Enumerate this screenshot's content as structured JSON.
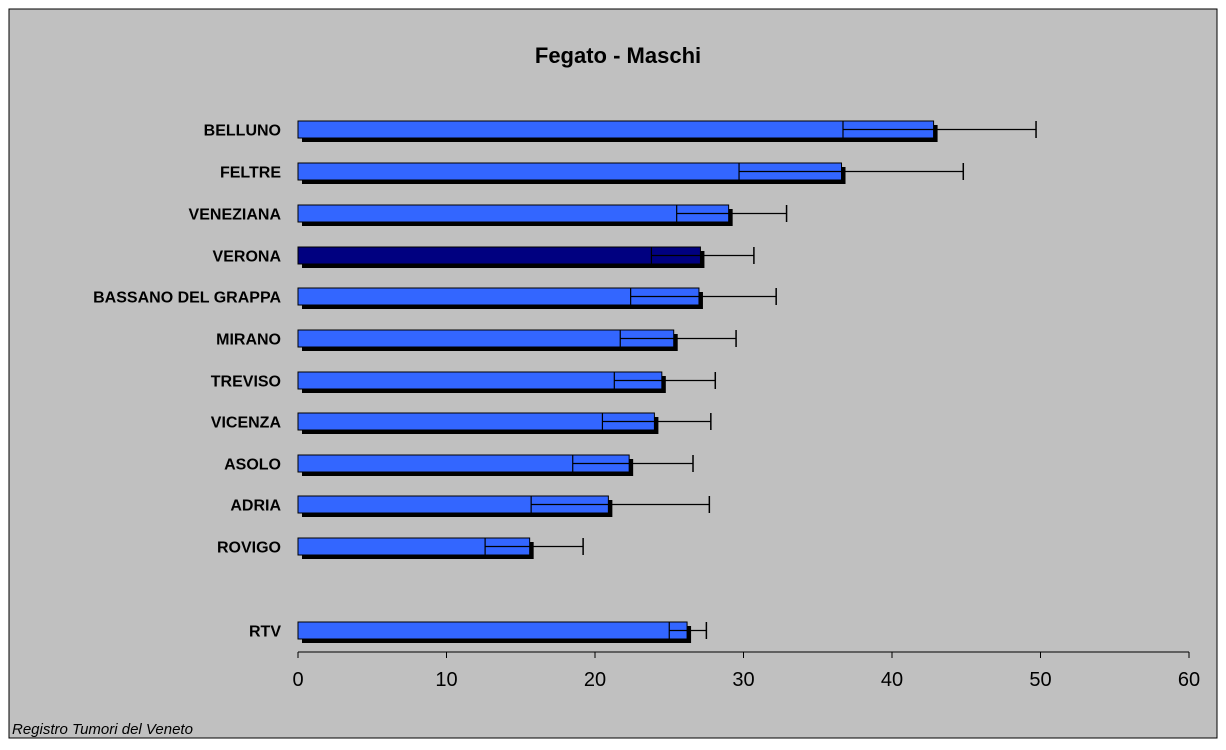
{
  "chart_data": {
    "type": "bar",
    "orientation": "horizontal",
    "title": "Fegato - Maschi",
    "source_note": "Registro Tumori del Veneto",
    "categories": [
      "BELLUNO",
      "FELTRE",
      "VENEZIANA",
      "VERONA",
      "BASSANO DEL GRAPPA",
      "MIRANO",
      "TREVISO",
      "VICENZA",
      "ASOLO",
      "ADRIA",
      "ROVIGO",
      "RTV"
    ],
    "values": [
      42.8,
      36.6,
      29.0,
      27.1,
      27.0,
      25.3,
      24.5,
      24.0,
      22.3,
      20.9,
      15.6,
      26.2
    ],
    "ci_lower": [
      36.7,
      29.7,
      25.5,
      23.8,
      22.4,
      21.7,
      21.3,
      20.5,
      18.5,
      15.7,
      12.6,
      25.0
    ],
    "ci_upper": [
      49.7,
      44.8,
      32.9,
      30.7,
      32.2,
      29.5,
      28.1,
      27.8,
      26.6,
      27.7,
      19.2,
      27.5
    ],
    "highlight_category": "VERONA",
    "xlim": [
      0,
      60
    ],
    "x_ticks": [
      "0",
      "10",
      "20",
      "30",
      "40",
      "50",
      "60"
    ],
    "grid": false,
    "colors": {
      "bar": "#3366FF",
      "bar_highlight": "#000080",
      "shadow": "#000000",
      "plot_bg": "#C0C0C0",
      "outline": "#000000"
    }
  }
}
